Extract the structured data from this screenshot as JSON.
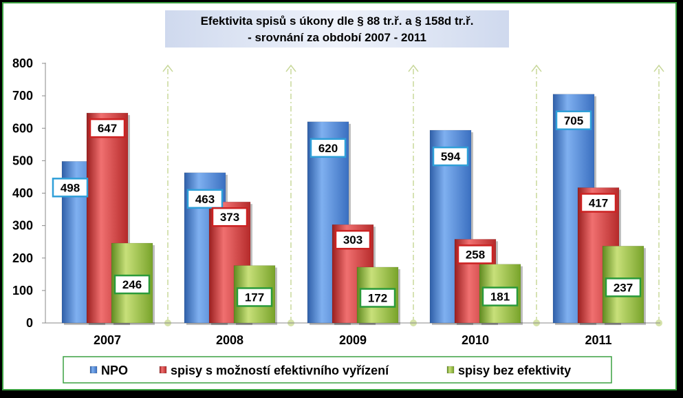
{
  "chart_data": {
    "type": "bar",
    "title_line1": "Efektivita spisů s úkony dle § 88 tr.ř. a § 158d tr.ř.",
    "title_line2": "- srovnání za období 2007 - 2011",
    "categories": [
      "2007",
      "2008",
      "2009",
      "2010",
      "2011"
    ],
    "series": [
      {
        "name": "NPO",
        "color": "#4a86d8",
        "values": [
          498,
          463,
          620,
          594,
          705
        ]
      },
      {
        "name": "spisy s možností efektivního vyřízení",
        "color": "#cc3333",
        "values": [
          647,
          373,
          303,
          258,
          417
        ]
      },
      {
        "name": "spisy bez efektivity",
        "color": "#8cb83a",
        "values": [
          246,
          177,
          172,
          181,
          237
        ]
      }
    ],
    "ylim": [
      0,
      800
    ],
    "yticks": [
      "0",
      "100",
      "200",
      "300",
      "400",
      "500",
      "600",
      "700",
      "800"
    ],
    "label_border_colors": [
      "#2f9fd8",
      "#cc2222",
      "#2a9a3a"
    ],
    "grid": false,
    "legend_position": "bottom"
  }
}
